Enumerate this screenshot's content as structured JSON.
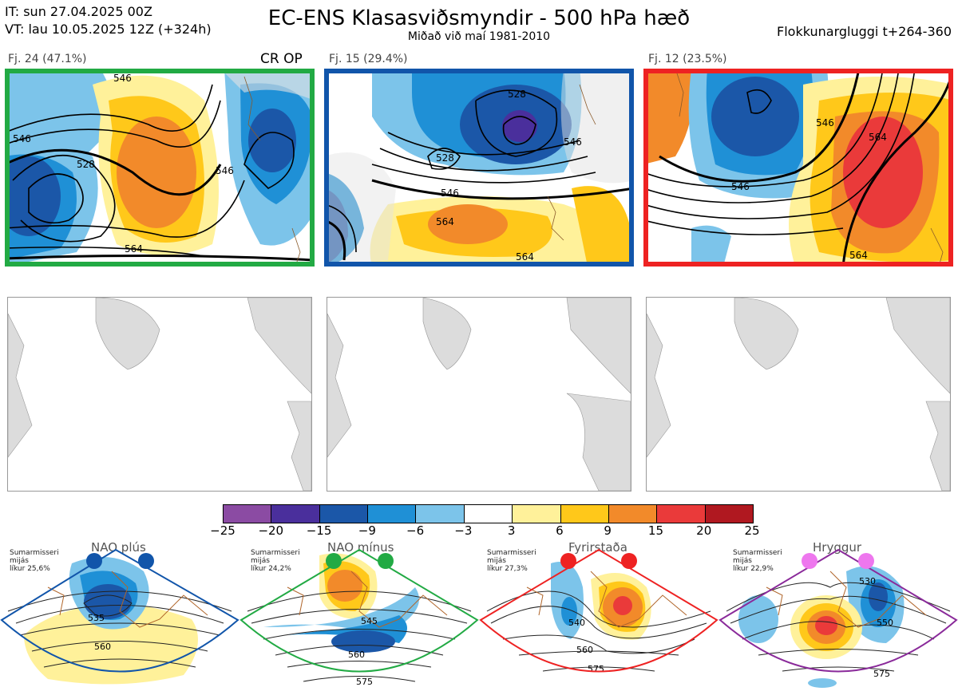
{
  "header": {
    "init_time": "IT: sun 27.04.2025 00Z",
    "valid_time": "VT: lau 10.05.2025 12Z  (+324h)",
    "title": "EC-ENS Klasasviðsmyndir - 500 hPa hæð",
    "subtitle": "Miðað við maí 1981-2010",
    "window": "Flokkunargluggi t+264-360"
  },
  "clusters": [
    {
      "label": "Fj. 24 (47.1%)",
      "extra": "CR OP",
      "border_color": "#22aa44",
      "contours": [
        "546",
        "528",
        "546",
        "546",
        "564"
      ]
    },
    {
      "label": "Fj. 15 (29.4%)",
      "extra": "",
      "border_color": "#1155aa",
      "contours": [
        "528",
        "528",
        "546",
        "546",
        "564",
        "564"
      ]
    },
    {
      "label": "Fj. 12 (23.5%)",
      "extra": "",
      "border_color": "#ee2222",
      "contours": [
        "546",
        "546",
        "564",
        "564"
      ]
    }
  ],
  "colorbar": {
    "colors": [
      "#8b4ba3",
      "#4a2f9c",
      "#1b57a8",
      "#1f90d6",
      "#7cc4ea",
      "#ffffff",
      "#fff19a",
      "#ffc81a",
      "#f28a2a",
      "#ea3a3a",
      "#b01820"
    ],
    "ticks": [
      "−25",
      "−20",
      "−15",
      "−9",
      "−6",
      "−3",
      "3",
      "6",
      "9",
      "15",
      "20",
      "25"
    ]
  },
  "regimes": [
    {
      "name": "NAO plús",
      "note": [
        "Sumarmisseri",
        "mijás",
        "líkur 25,6%"
      ],
      "dot_color": "#1155aa",
      "border_color": "#1155aa",
      "labels": [
        "535",
        "560"
      ]
    },
    {
      "name": "NAO mínus",
      "note": [
        "Sumarmisseri",
        "mijás",
        "líkur 24,2%"
      ],
      "dot_color": "#22aa44",
      "border_color": "#22aa44",
      "labels": [
        "545",
        "560",
        "575"
      ]
    },
    {
      "name": "Fyrirstaða",
      "note": [
        "Sumarmisseri",
        "mijás",
        "líkur 27,3%"
      ],
      "dot_color": "#ee2222",
      "border_color": "#ee2222",
      "labels": [
        "540",
        "560",
        "575"
      ]
    },
    {
      "name": "Hryggur",
      "note": [
        "Sumarmisseri",
        "mijás",
        "líkur 22,9%"
      ],
      "dot_color": "#ee77ee",
      "border_color": "#8a2a9a",
      "labels": [
        "530",
        "550",
        "575"
      ]
    }
  ]
}
